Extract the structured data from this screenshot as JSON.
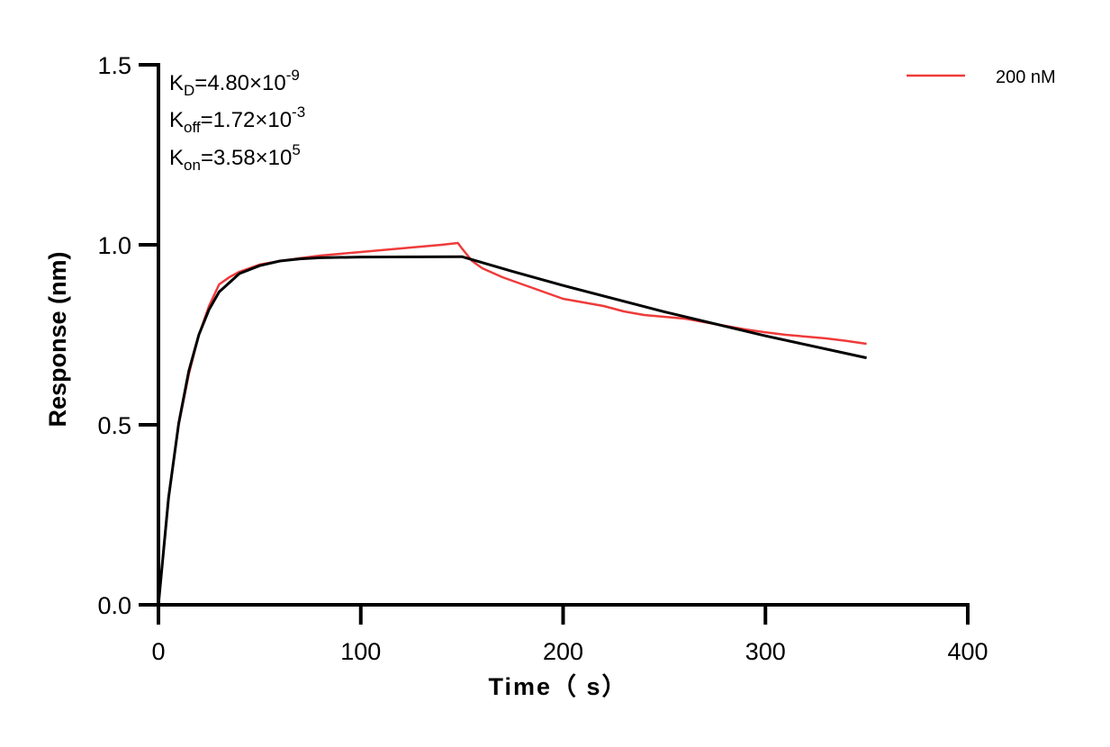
{
  "chart_data": {
    "type": "line",
    "xlabel": "Time（ s）",
    "ylabel": "Response (nm)",
    "xlim": [
      0,
      400
    ],
    "ylim": [
      0,
      1.5
    ],
    "xticks": [
      "0",
      "100",
      "200",
      "300",
      "400"
    ],
    "xtick_values": [
      0,
      100,
      200,
      300,
      400
    ],
    "yticks": [
      "0.0",
      "0.5",
      "1.0",
      "1.5"
    ],
    "ytick_values": [
      0,
      0.5,
      1.0,
      1.5
    ],
    "grid": false,
    "legend_position": "top-right",
    "annotations": {
      "kd": {
        "base": "K",
        "sub": "D",
        "text": "=4.80×10",
        "sup": "-9"
      },
      "koff": {
        "base": "K",
        "sub": "off",
        "text": "=1.72×10",
        "sup": "-3"
      },
      "kon": {
        "base": "K",
        "sub": "on",
        "text": "=3.58×10",
        "sup": "5"
      }
    },
    "series": [
      {
        "name": "200 nM",
        "color": "#ef3b3b",
        "x": [
          0,
          5,
          10,
          15,
          20,
          25,
          30,
          35,
          40,
          50,
          60,
          70,
          80,
          90,
          100,
          110,
          120,
          130,
          140,
          148,
          150,
          155,
          160,
          170,
          180,
          190,
          200,
          210,
          220,
          230,
          240,
          250,
          260,
          270,
          280,
          290,
          300,
          310,
          320,
          330,
          340,
          350
        ],
        "y": [
          0,
          0.3,
          0.5,
          0.64,
          0.75,
          0.83,
          0.89,
          0.91,
          0.925,
          0.945,
          0.955,
          0.963,
          0.97,
          0.975,
          0.98,
          0.985,
          0.99,
          0.995,
          1.0,
          1.005,
          0.99,
          0.955,
          0.935,
          0.91,
          0.89,
          0.87,
          0.85,
          0.84,
          0.83,
          0.815,
          0.805,
          0.8,
          0.795,
          0.785,
          0.775,
          0.765,
          0.757,
          0.75,
          0.745,
          0.74,
          0.733,
          0.725
        ]
      },
      {
        "color": "#000000",
        "x": [
          0,
          5,
          10,
          15,
          20,
          25,
          30,
          40,
          50,
          60,
          70,
          80,
          100,
          150,
          175,
          200,
          250,
          300,
          350
        ],
        "y": [
          0,
          0.296,
          0.504,
          0.649,
          0.75,
          0.82,
          0.869,
          0.92,
          0.942,
          0.955,
          0.961,
          0.964,
          0.966,
          0.967,
          0.926,
          0.887,
          0.814,
          0.747,
          0.686
        ]
      }
    ]
  }
}
